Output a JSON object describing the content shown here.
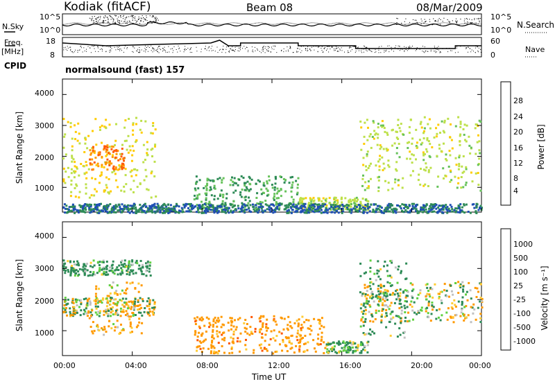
{
  "header": {
    "station": "Kodiak (fitACF)",
    "beam": "Beam 08",
    "date": "08/Mar/2009"
  },
  "left_labels": {
    "nsky": "N.Sky",
    "freq": "Freq.",
    "freq_unit": "[MHz]",
    "cpid": "CPID"
  },
  "right_labels": {
    "nsearch": "N.Search",
    "nave": "Nave"
  },
  "cpid_text": "normalsound (fast) 157",
  "noise_axis": {
    "left_ticks": [
      "10^5",
      "10^0"
    ],
    "right_ticks": [
      "10^5",
      "10^0"
    ]
  },
  "freq_axis": {
    "left_ticks": [
      "18",
      "8"
    ],
    "right_ticks": [
      "60",
      "0"
    ]
  },
  "power_panel": {
    "ylabel": "Slant Range [km]",
    "yticks": [
      "4000",
      "3000",
      "2000",
      "1000"
    ],
    "colorbar_label": "Power [dB]",
    "colorbar_ticks": [
      "28",
      "24",
      "20",
      "16",
      "12",
      "8",
      "4"
    ],
    "colors": [
      "#0000ff",
      "#1f4fb4",
      "#2e8b57",
      "#66c25a",
      "#bde04a",
      "#ffcc00",
      "#ff9900",
      "#ff5a00",
      "#ff0000"
    ]
  },
  "velocity_panel": {
    "ylabel": "Slant Range [km]",
    "yticks": [
      "4000",
      "3000",
      "2000",
      "1000"
    ],
    "colorbar_label": "Velocity [m s⁻¹]",
    "colorbar_ticks": [
      "1000",
      "500",
      "100",
      "25",
      "-25",
      "-100",
      "-500",
      "-1000"
    ],
    "colors": [
      "#1a3cc8",
      "#2a70b0",
      "#2e8b57",
      "#5fd040",
      "#c0c0c0",
      "#ffcc33",
      "#ff9900",
      "#ff5500",
      "#ff0000"
    ]
  },
  "xaxis": {
    "label": "Time UT",
    "ticks": [
      "00:00",
      "04:00",
      "08:00",
      "12:00",
      "16:00",
      "20:00",
      "00:00"
    ]
  },
  "chart_data": {
    "type": "heatmap",
    "title": "Kodiak (fitACF) Beam 08 08/Mar/2009",
    "xlabel": "Time UT",
    "ylabel": "Slant Range [km]",
    "x_range_hours": [
      0,
      24
    ],
    "ylim_km": [
      200,
      4500
    ],
    "panels": [
      {
        "name": "Power [dB]",
        "color_scale": [
          4,
          8,
          12,
          16,
          20,
          24,
          28
        ],
        "regions": [
          {
            "t": [
              0.0,
              5.3
            ],
            "range_km": [
              700,
              3300
            ],
            "power_db": 20
          },
          {
            "t": [
              1.5,
              3.5
            ],
            "range_km": [
              1600,
              2400
            ],
            "power_db": 28
          },
          {
            "t": [
              7.5,
              13.5
            ],
            "range_km": [
              300,
              1400
            ],
            "power_db": 12
          },
          {
            "t": [
              13.5,
              17.5
            ],
            "range_km": [
              300,
              700
            ],
            "power_db": 18
          },
          {
            "t": [
              17.0,
              24.0
            ],
            "range_km": [
              900,
              3300
            ],
            "power_db": 18
          },
          {
            "t": [
              0.0,
              24.0
            ],
            "range_km": [
              200,
              500
            ],
            "power_db": 8
          }
        ]
      },
      {
        "name": "Velocity [m s-1]",
        "color_scale": [
          -1000,
          -500,
          -100,
          -25,
          25,
          100,
          500,
          1000
        ],
        "regions": [
          {
            "t": [
              0.0,
              5.0
            ],
            "range_km": [
              2800,
              3300
            ],
            "velocity": -200
          },
          {
            "t": [
              0.0,
              5.3
            ],
            "range_km": [
              1500,
              2100
            ],
            "velocity": 0
          },
          {
            "t": [
              1.5,
              4.5
            ],
            "range_km": [
              900,
              2600
            ],
            "velocity": 150
          },
          {
            "t": [
              7.5,
              15.0
            ],
            "range_km": [
              300,
              1500
            ],
            "velocity": 300
          },
          {
            "t": [
              15.0,
              17.5
            ],
            "range_km": [
              300,
              700
            ],
            "velocity": -150
          },
          {
            "t": [
              17.0,
              24.0
            ],
            "range_km": [
              1300,
              2600
            ],
            "velocity": 0
          },
          {
            "t": [
              17.0,
              20.0
            ],
            "range_km": [
              800,
              3300
            ],
            "velocity": -200
          }
        ]
      }
    ],
    "nsky_range": [
      "10^0",
      "10^5"
    ],
    "freq_range_mhz": [
      8,
      18
    ],
    "nave_range": [
      0,
      60
    ]
  }
}
